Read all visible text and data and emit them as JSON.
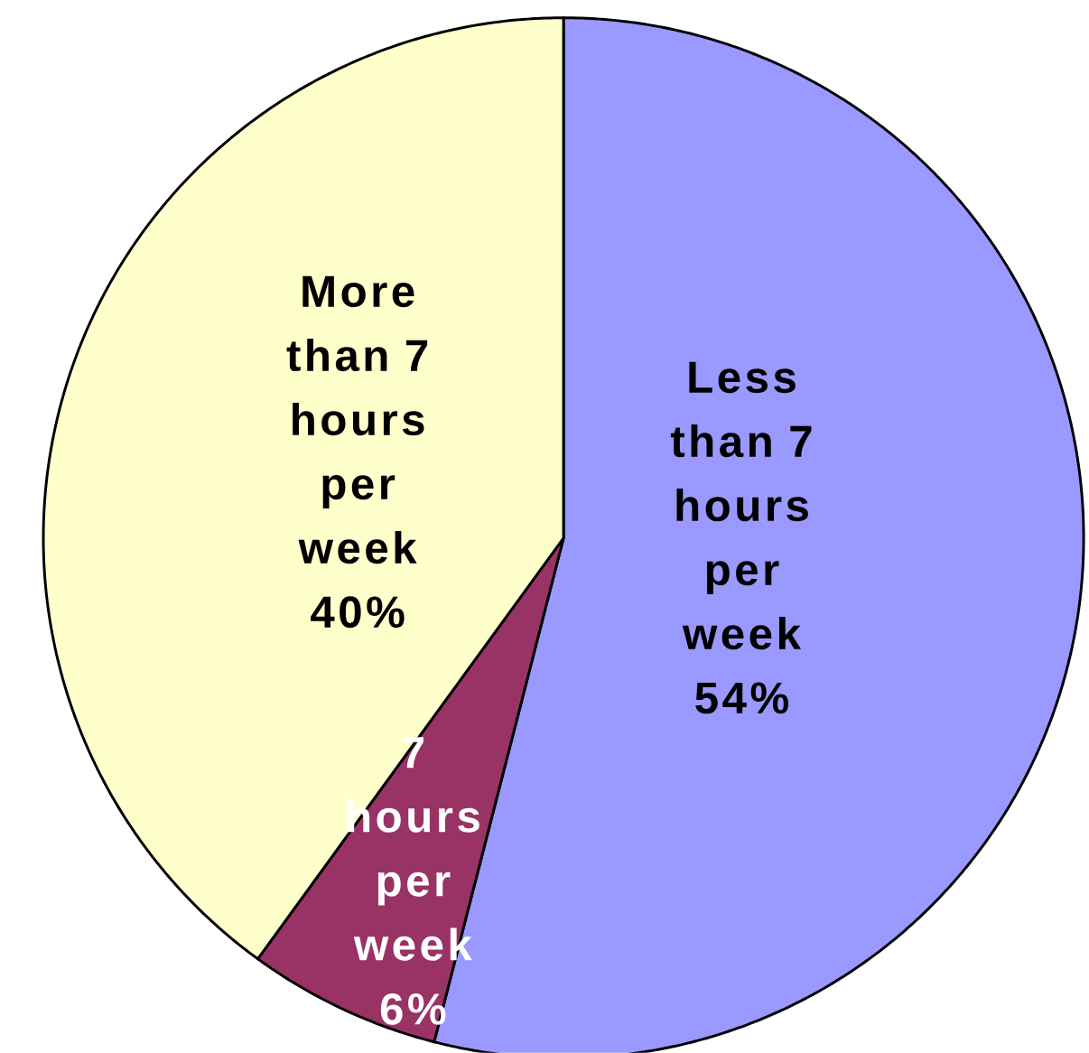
{
  "chart_data": {
    "type": "pie",
    "categories": [
      "Less than 7 hours per week",
      "7 hours per week",
      "More than 7 hours per week"
    ],
    "values": [
      54,
      6,
      40
    ],
    "colors": [
      "#9999ff",
      "#993366",
      "#ffffcc"
    ],
    "value_labels": [
      "54%",
      "6%",
      "40%"
    ]
  }
}
